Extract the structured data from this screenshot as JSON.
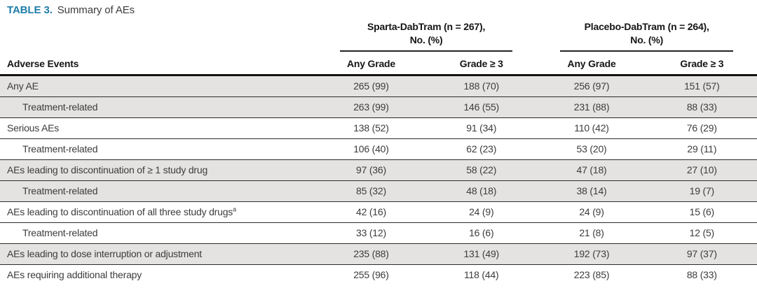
{
  "caption": {
    "label": "TABLE 3.",
    "text": "Summary of AEs"
  },
  "colors": {
    "accent_teal": "#1f7da7",
    "shaded_row": "#e4e3e1",
    "rule_black": "#111111"
  },
  "table": {
    "groups": [
      {
        "title_line1": "Sparta-DabTram (n = 267),",
        "title_line2": "No. (%)"
      },
      {
        "title_line1": "Placebo-DabTram (n = 264),",
        "title_line2": "No. (%)"
      }
    ],
    "row_header": "Adverse Events",
    "sub_headers": [
      "Any Grade",
      "Grade ≥ 3",
      "Any Grade",
      "Grade ≥ 3"
    ],
    "rows": [
      {
        "label": "Any AE",
        "superscript": "",
        "indent": false,
        "shaded": true,
        "values": [
          "265 (99)",
          "188 (70)",
          "256 (97)",
          "151 (57)"
        ]
      },
      {
        "label": "Treatment-related",
        "superscript": "",
        "indent": true,
        "shaded": true,
        "values": [
          "263 (99)",
          "146 (55)",
          "231 (88)",
          "88 (33)"
        ]
      },
      {
        "label": "Serious AEs",
        "superscript": "",
        "indent": false,
        "shaded": false,
        "values": [
          "138 (52)",
          "91 (34)",
          "110 (42)",
          "76 (29)"
        ]
      },
      {
        "label": "Treatment-related",
        "superscript": "",
        "indent": true,
        "shaded": false,
        "values": [
          "106 (40)",
          "62 (23)",
          "53 (20)",
          "29 (11)"
        ]
      },
      {
        "label": "AEs leading to discontinuation of ≥ 1 study drug",
        "superscript": "",
        "indent": false,
        "shaded": true,
        "values": [
          "97 (36)",
          "58 (22)",
          "47 (18)",
          "27 (10)"
        ]
      },
      {
        "label": "Treatment-related",
        "superscript": "",
        "indent": true,
        "shaded": true,
        "values": [
          "85 (32)",
          "48 (18)",
          "38 (14)",
          "19 (7)"
        ]
      },
      {
        "label": "AEs leading to discontinuation of all three study drugs",
        "superscript": "a",
        "indent": false,
        "shaded": false,
        "values": [
          "42 (16)",
          "24 (9)",
          "24 (9)",
          "15 (6)"
        ]
      },
      {
        "label": "Treatment-related",
        "superscript": "",
        "indent": true,
        "shaded": false,
        "values": [
          "33 (12)",
          "16 (6)",
          "21 (8)",
          "12 (5)"
        ]
      },
      {
        "label": "AEs leading to dose interruption or adjustment",
        "superscript": "",
        "indent": false,
        "shaded": true,
        "values": [
          "235 (88)",
          "131 (49)",
          "192 (73)",
          "97 (37)"
        ]
      },
      {
        "label": "AEs requiring additional therapy",
        "superscript": "",
        "indent": false,
        "shaded": false,
        "values": [
          "255 (96)",
          "118 (44)",
          "223 (85)",
          "88 (33)"
        ]
      }
    ]
  }
}
